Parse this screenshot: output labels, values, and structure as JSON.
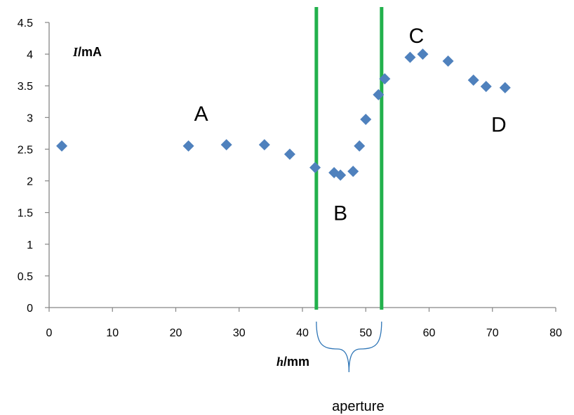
{
  "chart_data": {
    "type": "scatter",
    "title": "",
    "x_label": {
      "var": "h",
      "unit": "/mm"
    },
    "y_label": {
      "var": "I",
      "unit": "/mA"
    },
    "xlim": [
      0,
      80
    ],
    "ylim": [
      0,
      4.5
    ],
    "x_ticks": [
      "0",
      "10",
      "20",
      "30",
      "40",
      "50",
      "60",
      "70",
      "80"
    ],
    "y_ticks": [
      "0",
      "0.5",
      "1",
      "1.5",
      "2",
      "2.5",
      "3",
      "3.5",
      "4",
      "4.5"
    ],
    "grid": false,
    "marker": "diamond",
    "marker_color": "#4F81BD",
    "points": [
      {
        "x": 2,
        "y": 2.55
      },
      {
        "x": 22,
        "y": 2.55
      },
      {
        "x": 28,
        "y": 2.57
      },
      {
        "x": 34,
        "y": 2.57
      },
      {
        "x": 38,
        "y": 2.42
      },
      {
        "x": 42,
        "y": 2.21
      },
      {
        "x": 45,
        "y": 2.13
      },
      {
        "x": 46,
        "y": 2.09
      },
      {
        "x": 48,
        "y": 2.15
      },
      {
        "x": 49,
        "y": 2.55
      },
      {
        "x": 50,
        "y": 2.97
      },
      {
        "x": 52,
        "y": 3.36
      },
      {
        "x": 53,
        "y": 3.61
      },
      {
        "x": 57,
        "y": 3.95
      },
      {
        "x": 59,
        "y": 4.0
      },
      {
        "x": 63,
        "y": 3.89
      },
      {
        "x": 67,
        "y": 3.59
      },
      {
        "x": 69,
        "y": 3.49
      },
      {
        "x": 72,
        "y": 3.47
      }
    ],
    "vertical_lines": {
      "color": "#22B14C",
      "x": [
        42.2,
        52.5
      ]
    },
    "annotations": [
      {
        "text": "A",
        "x": 24,
        "y": 3.07
      },
      {
        "text": "B",
        "x": 46,
        "y": 1.5
      },
      {
        "text": "C",
        "x": 58,
        "y": 4.3
      },
      {
        "text": "D",
        "x": 71,
        "y": 2.9
      }
    ],
    "brace": {
      "color": "#2E75B6",
      "x_from": 42.2,
      "x_to": 52.5,
      "label": "aperture"
    }
  }
}
